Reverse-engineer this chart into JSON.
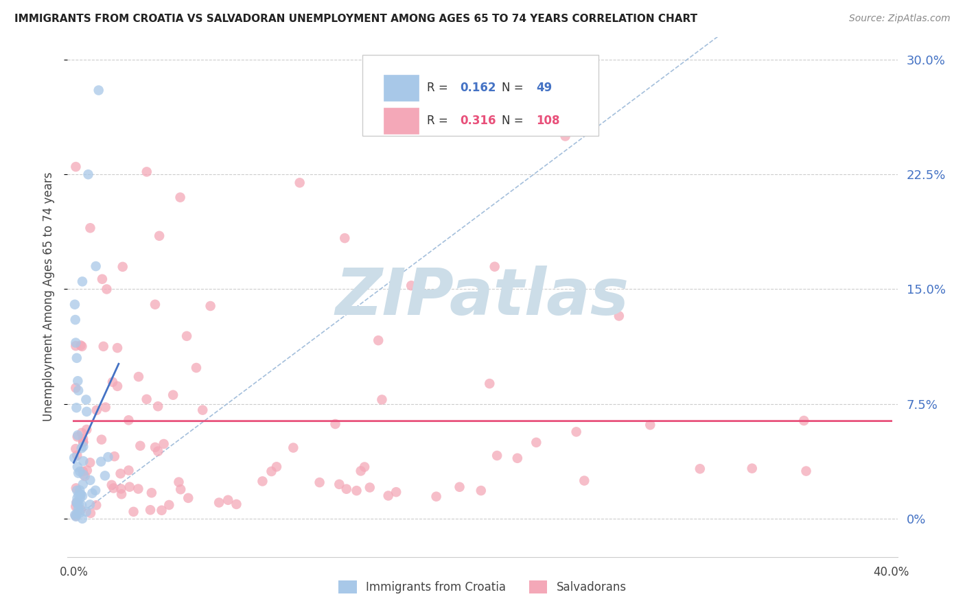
{
  "title": "IMMIGRANTS FROM CROATIA VS SALVADORAN UNEMPLOYMENT AMONG AGES 65 TO 74 YEARS CORRELATION CHART",
  "source": "Source: ZipAtlas.com",
  "ylabel": "Unemployment Among Ages 65 to 74 years",
  "xlim": [
    -0.003,
    0.403
  ],
  "ylim": [
    -0.025,
    0.315
  ],
  "yticks": [
    0.0,
    0.075,
    0.15,
    0.225,
    0.3
  ],
  "ytick_labels": [
    "0%",
    "7.5%",
    "15.0%",
    "22.5%",
    "30.0%"
  ],
  "xticks": [
    0.0,
    0.05,
    0.1,
    0.15,
    0.2,
    0.25,
    0.3,
    0.35,
    0.4
  ],
  "xtick_labels": [
    "0.0%",
    "",
    "",
    "",
    "",
    "",
    "",
    "",
    "40.0%"
  ],
  "legend_R1": "0.162",
  "legend_N1": "49",
  "legend_R2": "0.316",
  "legend_N2": "108",
  "color_croatia": "#a8c8e8",
  "color_salvadoran": "#f4a8b8",
  "color_trend_croatia": "#4472c4",
  "color_trend_salvadoran": "#e8507a",
  "color_diagonal": "#9ab8d8",
  "watermark_text": "ZIPatlas",
  "watermark_color": "#ccdde8",
  "grid_color": "#cccccc",
  "tick_color_y": "#4472c4",
  "tick_color_x": "#444444",
  "ylabel_color": "#444444",
  "title_color": "#222222",
  "source_color": "#888888",
  "legend_num_color_blue": "#4472c4",
  "legend_num_color_pink": "#e8507a"
}
